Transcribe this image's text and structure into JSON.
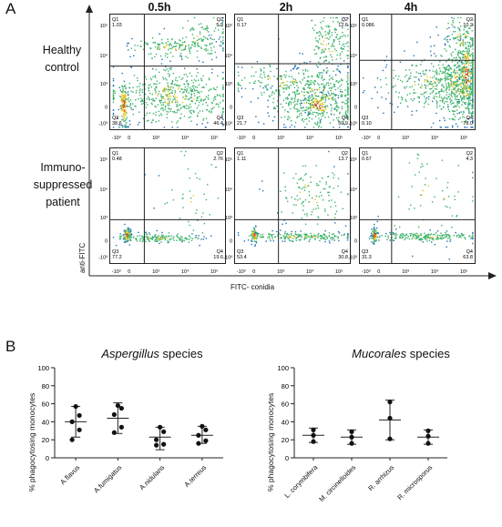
{
  "panel_a": {
    "letter": "A",
    "timepoints": [
      "0.5h",
      "2h",
      "4h"
    ],
    "rows": [
      {
        "line1": "Healthy",
        "line2": "control"
      },
      {
        "line1": "Immuno-",
        "line2": "suppressed",
        "line3": "patient"
      }
    ],
    "y_axis_label": "anti-FITC",
    "x_axis_label": "FITC- conidia",
    "quadrants": [
      [
        {
          "q1": "Q1",
          "q1v": "1.03",
          "q2": "Q2",
          "q2v": "5.9",
          "q3": "Q3",
          "q3v": "38.6",
          "q4": "Q4",
          "q4v": "46.4"
        },
        {
          "q1": "Q1",
          "q1v": "0.17",
          "q2": "Q2",
          "q2v": "12.6",
          "q3": "Q3",
          "q3v": "21.7",
          "q4": "Q4",
          "q4v": "50.9"
        },
        {
          "q1": "Q1",
          "q1v": "0.086",
          "q2": "Q2",
          "q2v": "10.2",
          "q3": "Q3",
          "q3v": "0.10",
          "q4": "Q4",
          "q4v": "78.0"
        }
      ],
      [
        {
          "q1": "Q1",
          "q1v": "0.48",
          "q2": "Q2",
          "q2v": "2.76",
          "q3": "Q3",
          "q3v": "77.2",
          "q4": "Q4",
          "q4v": "19.6"
        },
        {
          "q1": "Q1",
          "q1v": "1.11",
          "q2": "Q2",
          "q2v": "13.7",
          "q3": "Q3",
          "q3v": "53.4",
          "q4": "Q4",
          "q4v": "30.8"
        },
        {
          "q1": "Q1",
          "q1v": "0.67",
          "q2": "Q2",
          "q2v": "4.3",
          "q3": "Q3",
          "q3v": "31.3",
          "q4": "Q4",
          "q4v": "63.8"
        }
      ]
    ],
    "tick_labels": [
      "-10³",
      "0",
      "10³",
      "10⁴",
      "10⁵"
    ],
    "colors": {
      "low": "#1e6fb5",
      "mid": "#3cb26a",
      "high": "#f0c419",
      "peak": "#e8432a"
    }
  },
  "panel_b": {
    "letter": "B",
    "ylabel": "% phagocytosing monocytes",
    "ticks": [
      "0",
      "20",
      "40",
      "60",
      "80",
      "100"
    ]
  },
  "chart_data": [
    {
      "type": "scatter",
      "title_italic": "Aspergillus",
      "title_rest": " species",
      "ylabel": "% phagocytosing monocytes",
      "ylim": [
        0,
        100
      ],
      "categories": [
        "A.flavus",
        "A.fumigatus",
        "A.nidulans",
        "A.terreus"
      ],
      "points": [
        [
          57,
          47,
          40,
          31,
          20
        ],
        [
          58,
          55,
          48,
          34,
          28
        ],
        [
          34,
          29,
          20,
          15,
          14
        ],
        [
          35,
          31,
          25,
          19,
          16
        ]
      ],
      "mean": [
        40,
        44,
        23,
        25
      ],
      "sd_low": [
        23,
        27,
        9,
        16
      ],
      "sd_high": [
        57,
        61,
        34,
        35
      ]
    },
    {
      "type": "scatter",
      "title_italic": "Mucorales",
      "title_rest": " species",
      "ylabel": "% phagocytosing monocytes",
      "ylim": [
        0,
        100
      ],
      "categories": [
        "L. corymbifera",
        "M. circinelloides",
        "R. arrhizus",
        "R. microsporus"
      ],
      "points": [
        [
          31,
          25,
          18
        ],
        [
          29,
          23,
          16
        ],
        [
          62,
          44,
          21
        ],
        [
          30,
          24,
          16
        ]
      ],
      "mean": [
        25,
        23,
        42,
        23
      ],
      "sd_low": [
        17,
        15,
        20,
        15
      ],
      "sd_high": [
        33,
        31,
        64,
        31
      ]
    }
  ]
}
